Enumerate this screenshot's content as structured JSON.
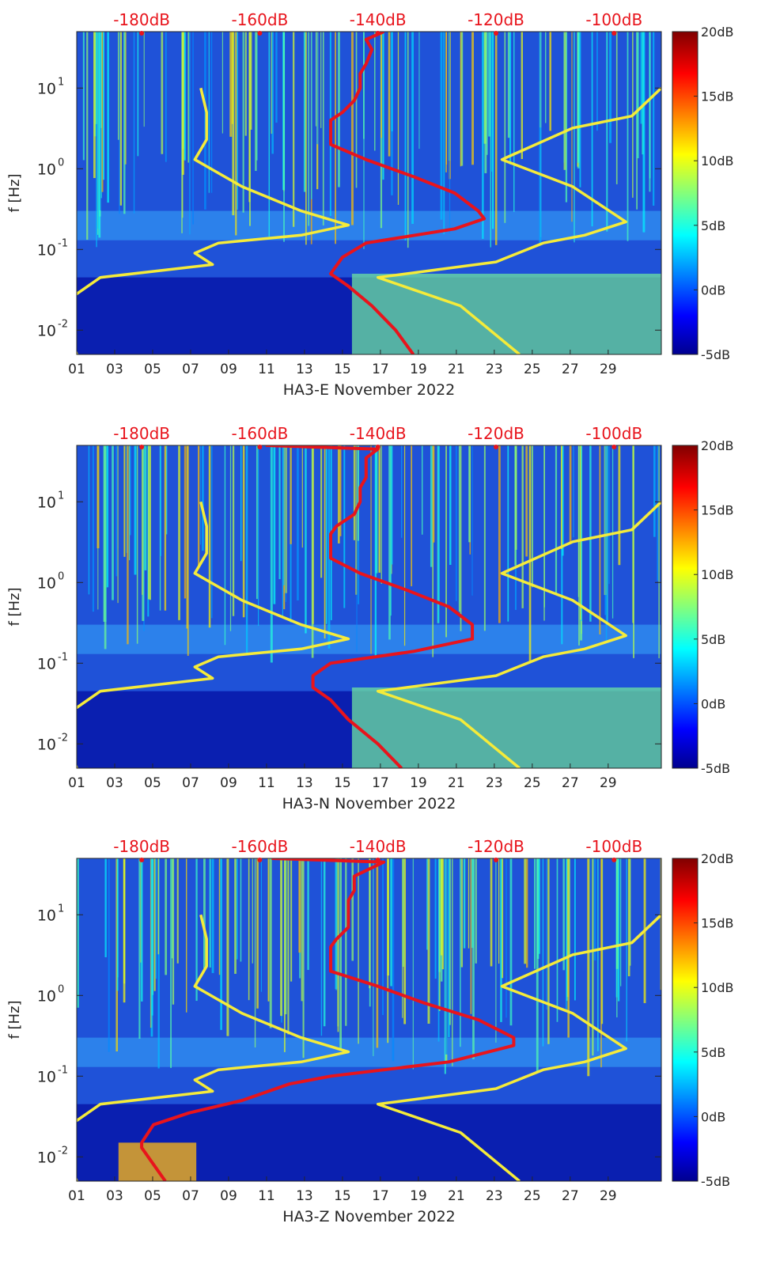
{
  "chart_data": [
    {
      "type": "heatmap",
      "xlabel": "HA3-E November 2022",
      "ylabel": "f [Hz]",
      "x_range": [
        1,
        31.8
      ],
      "x_ticks": [
        "01",
        "03",
        "05",
        "07",
        "09",
        "11",
        "13",
        "15",
        "17",
        "19",
        "21",
        "23",
        "25",
        "27",
        "29"
      ],
      "ylim": [
        0.005,
        50
      ],
      "y_ticks": [
        {
          "value": 0.01,
          "base": "10",
          "exp": "-2"
        },
        {
          "value": 0.1,
          "base": "10",
          "exp": "-1"
        },
        {
          "value": 1,
          "base": "10",
          "exp": "0"
        },
        {
          "value": 10,
          "base": "10",
          "exp": "1"
        }
      ],
      "top_axis_label_color": "#e8141c",
      "top_axis_range_db": [
        -191,
        -92
      ],
      "top_ticks": [
        "-180dB",
        "-160dB",
        "-140dB",
        "-120dB",
        "-100dB"
      ],
      "top_tick_values": [
        -180,
        -160,
        -140,
        -120,
        -100
      ],
      "colorbar": {
        "min": -5,
        "max": 20,
        "ticks": [
          "20dB",
          "15dB",
          "10dB",
          "5dB",
          "0dB",
          "-5dB"
        ],
        "tick_values": [
          20,
          15,
          10,
          5,
          0,
          -5
        ]
      },
      "series": [
        {
          "name": "red PSD",
          "color": "#e8141c",
          "points": [
            [
              -139,
              50
            ],
            [
              -142,
              40
            ],
            [
              -141,
              30
            ],
            [
              -142,
              20
            ],
            [
              -143,
              15
            ],
            [
              -143,
              10
            ],
            [
              -144,
              7
            ],
            [
              -146,
              5
            ],
            [
              -148,
              4
            ],
            [
              -148,
              3
            ],
            [
              -148,
              2
            ],
            [
              -142,
              1.3
            ],
            [
              -134,
              0.8
            ],
            [
              -127,
              0.5
            ],
            [
              -123,
              0.3
            ],
            [
              -122,
              0.24
            ],
            [
              -127,
              0.18
            ],
            [
              -142,
              0.12
            ],
            [
              -146,
              0.08
            ],
            [
              -148,
              0.05
            ],
            [
              -145,
              0.035
            ],
            [
              -141,
              0.02
            ],
            [
              -137,
              0.01
            ],
            [
              -134,
              0.005
            ]
          ]
        },
        {
          "name": "yellow noise model low",
          "color": "#f5eb3a",
          "points": [
            [
              -170,
              10
            ],
            [
              -169,
              5
            ],
            [
              -169,
              2.3
            ],
            [
              -171,
              1.3
            ],
            [
              -163,
              0.6
            ],
            [
              -153,
              0.3
            ],
            [
              -145,
              0.2
            ],
            [
              -153,
              0.15
            ],
            [
              -167,
              0.12
            ],
            [
              -171,
              0.09
            ],
            [
              -168,
              0.065
            ],
            [
              -187,
              0.045
            ],
            [
              -192,
              0.025
            ],
            [
              -193,
              0.015
            ],
            [
              -191,
              0.005
            ]
          ]
        },
        {
          "name": "yellow noise model high",
          "color": "#f5eb3a",
          "points": [
            [
              -92,
              10
            ],
            [
              -97,
              4.5
            ],
            [
              -107,
              3.2
            ],
            [
              -119,
              1.3
            ],
            [
              -107,
              0.6
            ],
            [
              -98,
              0.22
            ],
            [
              -105,
              0.15
            ],
            [
              -112,
              0.12
            ],
            [
              -120,
              0.07
            ],
            [
              -140,
              0.045
            ],
            [
              -126,
              0.02
            ],
            [
              -116,
              0.005
            ]
          ]
        }
      ]
    },
    {
      "type": "heatmap",
      "xlabel": "HA3-N November 2022",
      "ylabel": "f [Hz]",
      "x_range": [
        1,
        31.8
      ],
      "x_ticks": [
        "01",
        "03",
        "05",
        "07",
        "09",
        "11",
        "13",
        "15",
        "17",
        "19",
        "21",
        "23",
        "25",
        "27",
        "29"
      ],
      "ylim": [
        0.005,
        50
      ],
      "y_ticks": [
        {
          "value": 0.01,
          "base": "10",
          "exp": "-2"
        },
        {
          "value": 0.1,
          "base": "10",
          "exp": "-1"
        },
        {
          "value": 1,
          "base": "10",
          "exp": "0"
        },
        {
          "value": 10,
          "base": "10",
          "exp": "1"
        }
      ],
      "top_axis_label_color": "#e8141c",
      "top_axis_range_db": [
        -191,
        -92
      ],
      "top_ticks": [
        "-180dB",
        "-160dB",
        "-140dB",
        "-120dB",
        "-100dB"
      ],
      "top_tick_values": [
        -180,
        -160,
        -140,
        -120,
        -100
      ],
      "colorbar": {
        "min": -5,
        "max": 20,
        "ticks": [
          "20dB",
          "15dB",
          "10dB",
          "5dB",
          "0dB",
          "-5dB"
        ],
        "tick_values": [
          20,
          15,
          10,
          5,
          0,
          -5
        ]
      },
      "series": [
        {
          "name": "red PSD",
          "color": "#e8141c",
          "points": [
            [
              -159,
              50
            ],
            [
              -140,
              45
            ],
            [
              -142,
              35
            ],
            [
              -142,
              20
            ],
            [
              -143,
              15
            ],
            [
              -143,
              10
            ],
            [
              -144,
              7
            ],
            [
              -147,
              5
            ],
            [
              -148,
              4
            ],
            [
              -148,
              3
            ],
            [
              -148,
              2
            ],
            [
              -143,
              1.3
            ],
            [
              -135,
              0.8
            ],
            [
              -128,
              0.5
            ],
            [
              -124,
              0.3
            ],
            [
              -124,
              0.2
            ],
            [
              -134,
              0.14
            ],
            [
              -148,
              0.1
            ],
            [
              -151,
              0.07
            ],
            [
              -151,
              0.05
            ],
            [
              -148,
              0.035
            ],
            [
              -145,
              0.02
            ],
            [
              -140,
              0.01
            ],
            [
              -136,
              0.005
            ]
          ]
        },
        {
          "name": "yellow noise model low",
          "color": "#f5eb3a",
          "points": [
            [
              -170,
              10
            ],
            [
              -169,
              5
            ],
            [
              -169,
              2.3
            ],
            [
              -171,
              1.3
            ],
            [
              -163,
              0.6
            ],
            [
              -153,
              0.3
            ],
            [
              -145,
              0.2
            ],
            [
              -153,
              0.15
            ],
            [
              -167,
              0.12
            ],
            [
              -171,
              0.09
            ],
            [
              -168,
              0.065
            ],
            [
              -187,
              0.045
            ],
            [
              -192,
              0.025
            ],
            [
              -193,
              0.015
            ],
            [
              -191,
              0.005
            ]
          ]
        },
        {
          "name": "yellow noise model high",
          "color": "#f5eb3a",
          "points": [
            [
              -92,
              10
            ],
            [
              -97,
              4.5
            ],
            [
              -107,
              3.2
            ],
            [
              -119,
              1.3
            ],
            [
              -107,
              0.6
            ],
            [
              -98,
              0.22
            ],
            [
              -105,
              0.15
            ],
            [
              -112,
              0.12
            ],
            [
              -120,
              0.07
            ],
            [
              -140,
              0.045
            ],
            [
              -126,
              0.02
            ],
            [
              -116,
              0.005
            ]
          ]
        }
      ]
    },
    {
      "type": "heatmap",
      "xlabel": "HA3-Z November 2022",
      "ylabel": "f [Hz]",
      "x_range": [
        1,
        31.8
      ],
      "x_ticks": [
        "01",
        "03",
        "05",
        "07",
        "09",
        "11",
        "13",
        "15",
        "17",
        "19",
        "21",
        "23",
        "25",
        "27",
        "29"
      ],
      "ylim": [
        0.005,
        50
      ],
      "y_ticks": [
        {
          "value": 0.01,
          "base": "10",
          "exp": "-2"
        },
        {
          "value": 0.1,
          "base": "10",
          "exp": "-1"
        },
        {
          "value": 1,
          "base": "10",
          "exp": "0"
        },
        {
          "value": 10,
          "base": "10",
          "exp": "1"
        }
      ],
      "top_axis_label_color": "#e8141c",
      "top_axis_range_db": [
        -191,
        -92
      ],
      "top_ticks": [
        "-180dB",
        "-160dB",
        "-140dB",
        "-120dB",
        "-100dB"
      ],
      "top_tick_values": [
        -180,
        -160,
        -140,
        -120,
        -100
      ],
      "colorbar": {
        "min": -5,
        "max": 20,
        "ticks": [
          "20dB",
          "15dB",
          "10dB",
          "5dB",
          "0dB",
          "-5dB"
        ],
        "tick_values": [
          20,
          15,
          10,
          5,
          0,
          -5
        ]
      },
      "series": [
        {
          "name": "red PSD",
          "color": "#e8141c",
          "points": [
            [
              -158,
              50
            ],
            [
              -139,
              45
            ],
            [
              -144,
              30
            ],
            [
              -144,
              20
            ],
            [
              -145,
              15
            ],
            [
              -145,
              10
            ],
            [
              -145,
              7
            ],
            [
              -147,
              5
            ],
            [
              -148,
              4
            ],
            [
              -148,
              3
            ],
            [
              -148,
              2
            ],
            [
              -140,
              1.3
            ],
            [
              -132,
              0.8
            ],
            [
              -123,
              0.5
            ],
            [
              -117,
              0.3
            ],
            [
              -117,
              0.24
            ],
            [
              -128,
              0.15
            ],
            [
              -148,
              0.1
            ],
            [
              -155,
              0.08
            ],
            [
              -163,
              0.05
            ],
            [
              -172,
              0.035
            ],
            [
              -178,
              0.025
            ],
            [
              -180,
              0.015
            ],
            [
              -180,
              0.013
            ],
            [
              -176,
              0.005
            ]
          ]
        },
        {
          "name": "yellow noise model low",
          "color": "#f5eb3a",
          "points": [
            [
              -170,
              10
            ],
            [
              -169,
              5
            ],
            [
              -169,
              2.3
            ],
            [
              -171,
              1.3
            ],
            [
              -163,
              0.6
            ],
            [
              -153,
              0.3
            ],
            [
              -145,
              0.2
            ],
            [
              -153,
              0.15
            ],
            [
              -167,
              0.12
            ],
            [
              -171,
              0.09
            ],
            [
              -168,
              0.065
            ],
            [
              -187,
              0.045
            ],
            [
              -192,
              0.025
            ],
            [
              -193,
              0.015
            ],
            [
              -191,
              0.005
            ]
          ]
        },
        {
          "name": "yellow noise model high",
          "color": "#f5eb3a",
          "points": [
            [
              -92,
              10
            ],
            [
              -97,
              4.5
            ],
            [
              -107,
              3.2
            ],
            [
              -119,
              1.3
            ],
            [
              -107,
              0.6
            ],
            [
              -98,
              0.22
            ],
            [
              -105,
              0.15
            ],
            [
              -112,
              0.12
            ],
            [
              -120,
              0.07
            ],
            [
              -140,
              0.045
            ],
            [
              -126,
              0.02
            ],
            [
              -116,
              0.005
            ]
          ]
        }
      ]
    }
  ]
}
